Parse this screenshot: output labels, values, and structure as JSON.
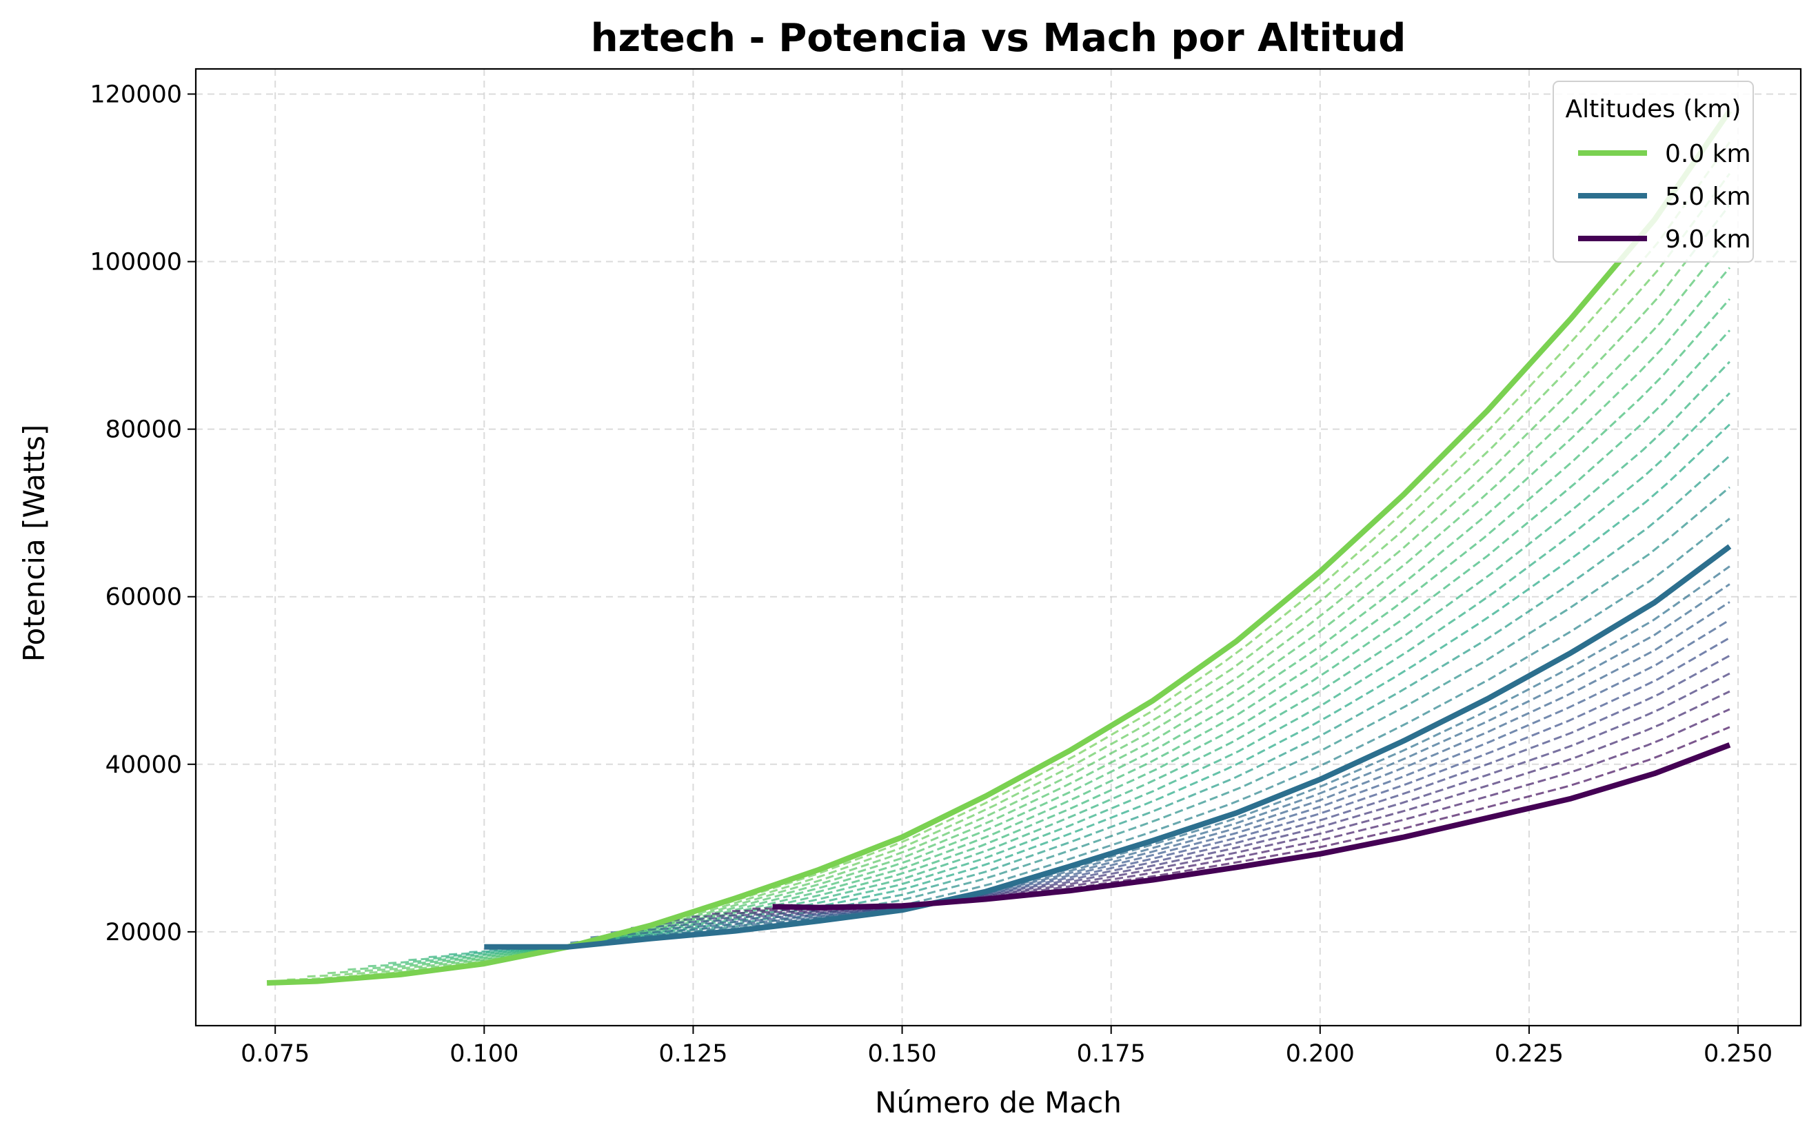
{
  "chart_data": {
    "type": "line",
    "title": "hztech - Potencia vs Mach por Altitud",
    "xlabel": "Número de Mach",
    "ylabel": "Potencia [Watts]",
    "xlim": [
      0.0655,
      0.2575
    ],
    "ylim": [
      8800,
      123000
    ],
    "xticks": [
      "0.075",
      "0.100",
      "0.125",
      "0.150",
      "0.175",
      "0.200",
      "0.225",
      "0.250"
    ],
    "yticks": [
      "20000",
      "40000",
      "60000",
      "80000",
      "100000",
      "120000"
    ],
    "grid": true,
    "legend": {
      "title": "Altitudes (km)",
      "placement": "top-right",
      "entries": [
        "0.0 km",
        "5.0 km",
        "9.0 km"
      ]
    },
    "series": [
      {
        "name": "0.0 km",
        "color": "#7ad151",
        "style": "solid",
        "x": [
          0.074,
          0.08,
          0.09,
          0.1,
          0.11,
          0.12,
          0.13,
          0.14,
          0.15,
          0.16,
          0.17,
          0.18,
          0.19,
          0.2,
          0.21,
          0.22,
          0.23,
          0.24,
          0.249
        ],
        "y": [
          13900,
          14100,
          14900,
          16200,
          18200,
          20800,
          24000,
          27400,
          31300,
          36200,
          41600,
          47600,
          54700,
          63000,
          72200,
          82200,
          93200,
          105000,
          118000
        ]
      },
      {
        "name": "5.0 km",
        "color": "#2c6f8e",
        "style": "solid",
        "x": [
          0.1,
          0.11,
          0.12,
          0.13,
          0.14,
          0.15,
          0.16,
          0.17,
          0.18,
          0.19,
          0.2,
          0.21,
          0.22,
          0.23,
          0.24,
          0.249
        ],
        "y": [
          18200,
          18200,
          19200,
          20100,
          21300,
          22600,
          24800,
          27800,
          30900,
          34200,
          38200,
          42800,
          47800,
          53300,
          59300,
          66000
        ]
      },
      {
        "name": "9.0 km",
        "color": "#440154",
        "style": "solid",
        "x": [
          0.1345,
          0.14,
          0.15,
          0.16,
          0.17,
          0.18,
          0.19,
          0.2,
          0.21,
          0.22,
          0.23,
          0.24,
          0.249
        ],
        "y": [
          23000,
          22900,
          23100,
          23900,
          24900,
          26200,
          27700,
          29300,
          31300,
          33600,
          35900,
          38900,
          42300
        ]
      }
    ],
    "intermediate_series": {
      "style": "dashed",
      "count": 25,
      "note": "interpolated altitudes between 0.0 km and 9.0 km"
    }
  }
}
